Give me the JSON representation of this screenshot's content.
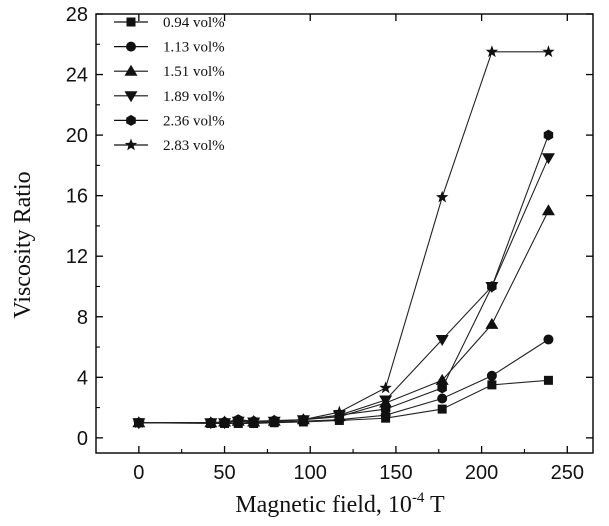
{
  "chart_data": {
    "type": "line",
    "title": "",
    "xlabel": "Magnetic field, 10",
    "xlabel_exp": "-4",
    "xlabel_unit": " T",
    "ylabel": "Viscosity Ratio",
    "xlim": [
      -25,
      265
    ],
    "ylim": [
      -1,
      28
    ],
    "xticks": [
      0,
      50,
      100,
      150,
      200,
      250
    ],
    "yticks": [
      0,
      4,
      8,
      12,
      16,
      20,
      24,
      28
    ],
    "grid": false,
    "legend_position": "top-left",
    "series": [
      {
        "name": "0.94 vol%",
        "marker": "square",
        "x": [
          0,
          42,
          50,
          58,
          67,
          79,
          96,
          117,
          144,
          177,
          206,
          239
        ],
        "y": [
          1.0,
          0.95,
          0.95,
          0.95,
          0.95,
          1.0,
          1.05,
          1.15,
          1.3,
          1.9,
          3.5,
          3.8
        ]
      },
      {
        "name": "1.13 vol%",
        "marker": "circle",
        "x": [
          0,
          42,
          50,
          58,
          67,
          79,
          96,
          117,
          144,
          177,
          206,
          239
        ],
        "y": [
          1.0,
          1.0,
          1.0,
          1.05,
          1.0,
          1.05,
          1.1,
          1.2,
          1.5,
          2.6,
          4.1,
          6.5
        ]
      },
      {
        "name": "1.51 vol%",
        "marker": "triangle-up",
        "x": [
          0,
          42,
          50,
          58,
          67,
          79,
          96,
          117,
          144,
          177,
          206,
          239
        ],
        "y": [
          1.0,
          1.0,
          1.05,
          1.1,
          1.05,
          1.1,
          1.2,
          1.4,
          2.3,
          3.8,
          7.5,
          15.0
        ]
      },
      {
        "name": "1.89 vol%",
        "marker": "triangle-down",
        "x": [
          0,
          42,
          50,
          58,
          67,
          79,
          96,
          117,
          144,
          177,
          206,
          239
        ],
        "y": [
          1.0,
          1.0,
          1.0,
          1.1,
          1.05,
          1.1,
          1.2,
          1.5,
          2.5,
          6.5,
          10.0,
          18.5
        ]
      },
      {
        "name": "2.36 vol%",
        "marker": "hexagon",
        "x": [
          0,
          42,
          50,
          58,
          67,
          79,
          96,
          117,
          144,
          177,
          206,
          239
        ],
        "y": [
          1.0,
          1.0,
          1.05,
          1.2,
          1.1,
          1.15,
          1.2,
          1.5,
          1.9,
          3.3,
          10.0,
          20.0
        ]
      },
      {
        "name": "2.83 vol%",
        "marker": "star",
        "x": [
          0,
          42,
          50,
          58,
          67,
          79,
          96,
          117,
          144,
          177,
          206,
          239
        ],
        "y": [
          1.0,
          1.0,
          1.0,
          1.1,
          1.1,
          1.1,
          1.2,
          1.7,
          3.3,
          15.9,
          25.5,
          25.5
        ]
      }
    ]
  }
}
